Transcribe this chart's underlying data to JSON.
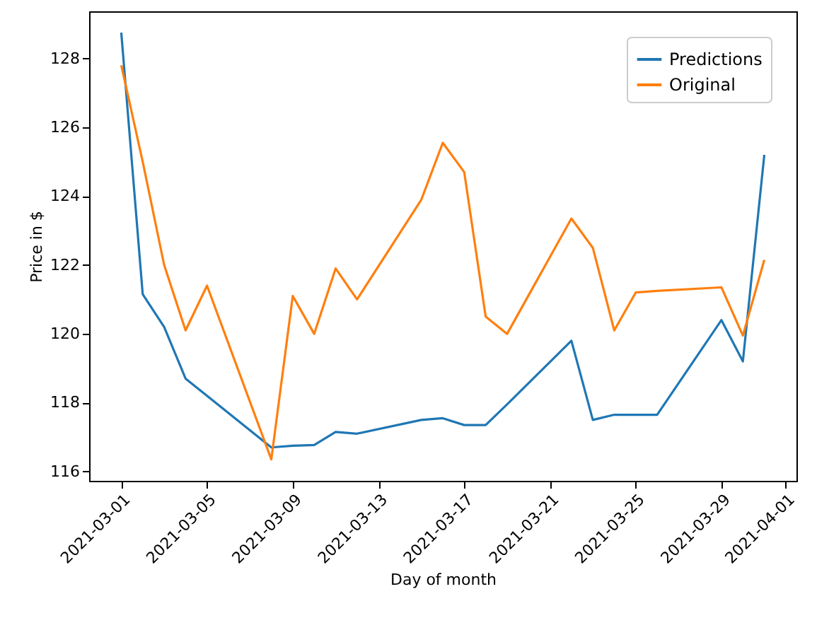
{
  "chart_data": {
    "type": "line",
    "xlabel": "Day of month",
    "ylabel": "Price in $",
    "x": [
      "2021-03-01",
      "2021-03-02",
      "2021-03-03",
      "2021-03-04",
      "2021-03-05",
      "2021-03-08",
      "2021-03-09",
      "2021-03-10",
      "2021-03-11",
      "2021-03-12",
      "2021-03-15",
      "2021-03-16",
      "2021-03-17",
      "2021-03-18",
      "2021-03-19",
      "2021-03-22",
      "2021-03-23",
      "2021-03-24",
      "2021-03-25",
      "2021-03-26",
      "2021-03-29",
      "2021-03-30",
      "2021-03-31"
    ],
    "series": [
      {
        "name": "Predictions",
        "color": "#1f77b4",
        "values": [
          128.75,
          121.15,
          120.2,
          118.7,
          118.2,
          116.7,
          116.75,
          116.77,
          117.15,
          117.1,
          117.5,
          117.55,
          117.35,
          117.35,
          117.95,
          119.8,
          117.5,
          117.65,
          117.65,
          117.65,
          120.4,
          119.2,
          125.2
        ]
      },
      {
        "name": "Original",
        "color": "#ff7f0e",
        "values": [
          127.8,
          125.0,
          122.0,
          120.1,
          121.4,
          116.35,
          121.1,
          120.0,
          121.9,
          121.0,
          123.9,
          125.55,
          124.7,
          120.5,
          120.0,
          123.35,
          122.5,
          120.1,
          121.2,
          121.25,
          121.35,
          119.95,
          122.15
        ]
      }
    ],
    "xlim": [
      "2021-02-27T12:00",
      "2021-04-01T12:00"
    ],
    "xticks": [
      "2021-03-01",
      "2021-03-05",
      "2021-03-09",
      "2021-03-13",
      "2021-03-17",
      "2021-03-21",
      "2021-03-25",
      "2021-03-29",
      "2021-04-01"
    ],
    "ylim": [
      115.73,
      129.37
    ],
    "yticks": [
      116,
      118,
      120,
      122,
      124,
      126,
      128
    ],
    "grid": false,
    "legend": "top right",
    "marker": "none",
    "line_style": "solid"
  }
}
